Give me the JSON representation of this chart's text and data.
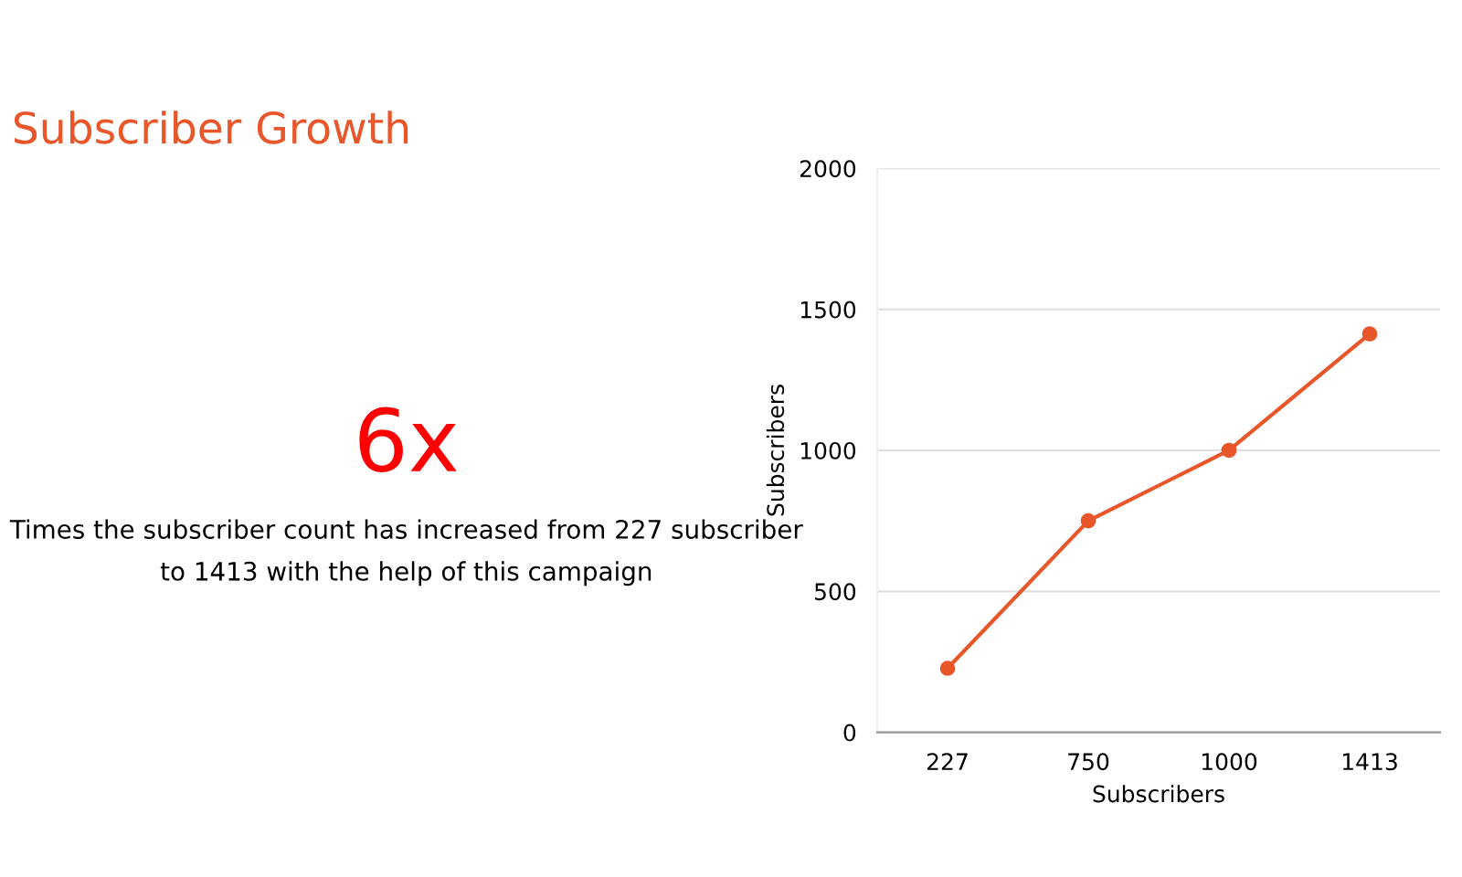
{
  "chart_data": {
    "type": "line",
    "title": "Subscriber Growth",
    "xlabel": "Subscribers",
    "ylabel": "Subscribers",
    "categories": [
      "227",
      "750",
      "1000",
      "1413"
    ],
    "series": [
      {
        "color": "#e8562a",
        "values": [
          227,
          750,
          1000,
          1413
        ]
      }
    ],
    "ylim": [
      0,
      2000
    ],
    "yticks": [
      0,
      500,
      1000,
      1500,
      2000
    ],
    "grid": "y",
    "marker": "circle",
    "line_style": "solid",
    "legend": false,
    "annotations": [
      "6x",
      "Times the subscriber count has increased from 227 subscriber to 1413 with the help of this campaign"
    ]
  }
}
